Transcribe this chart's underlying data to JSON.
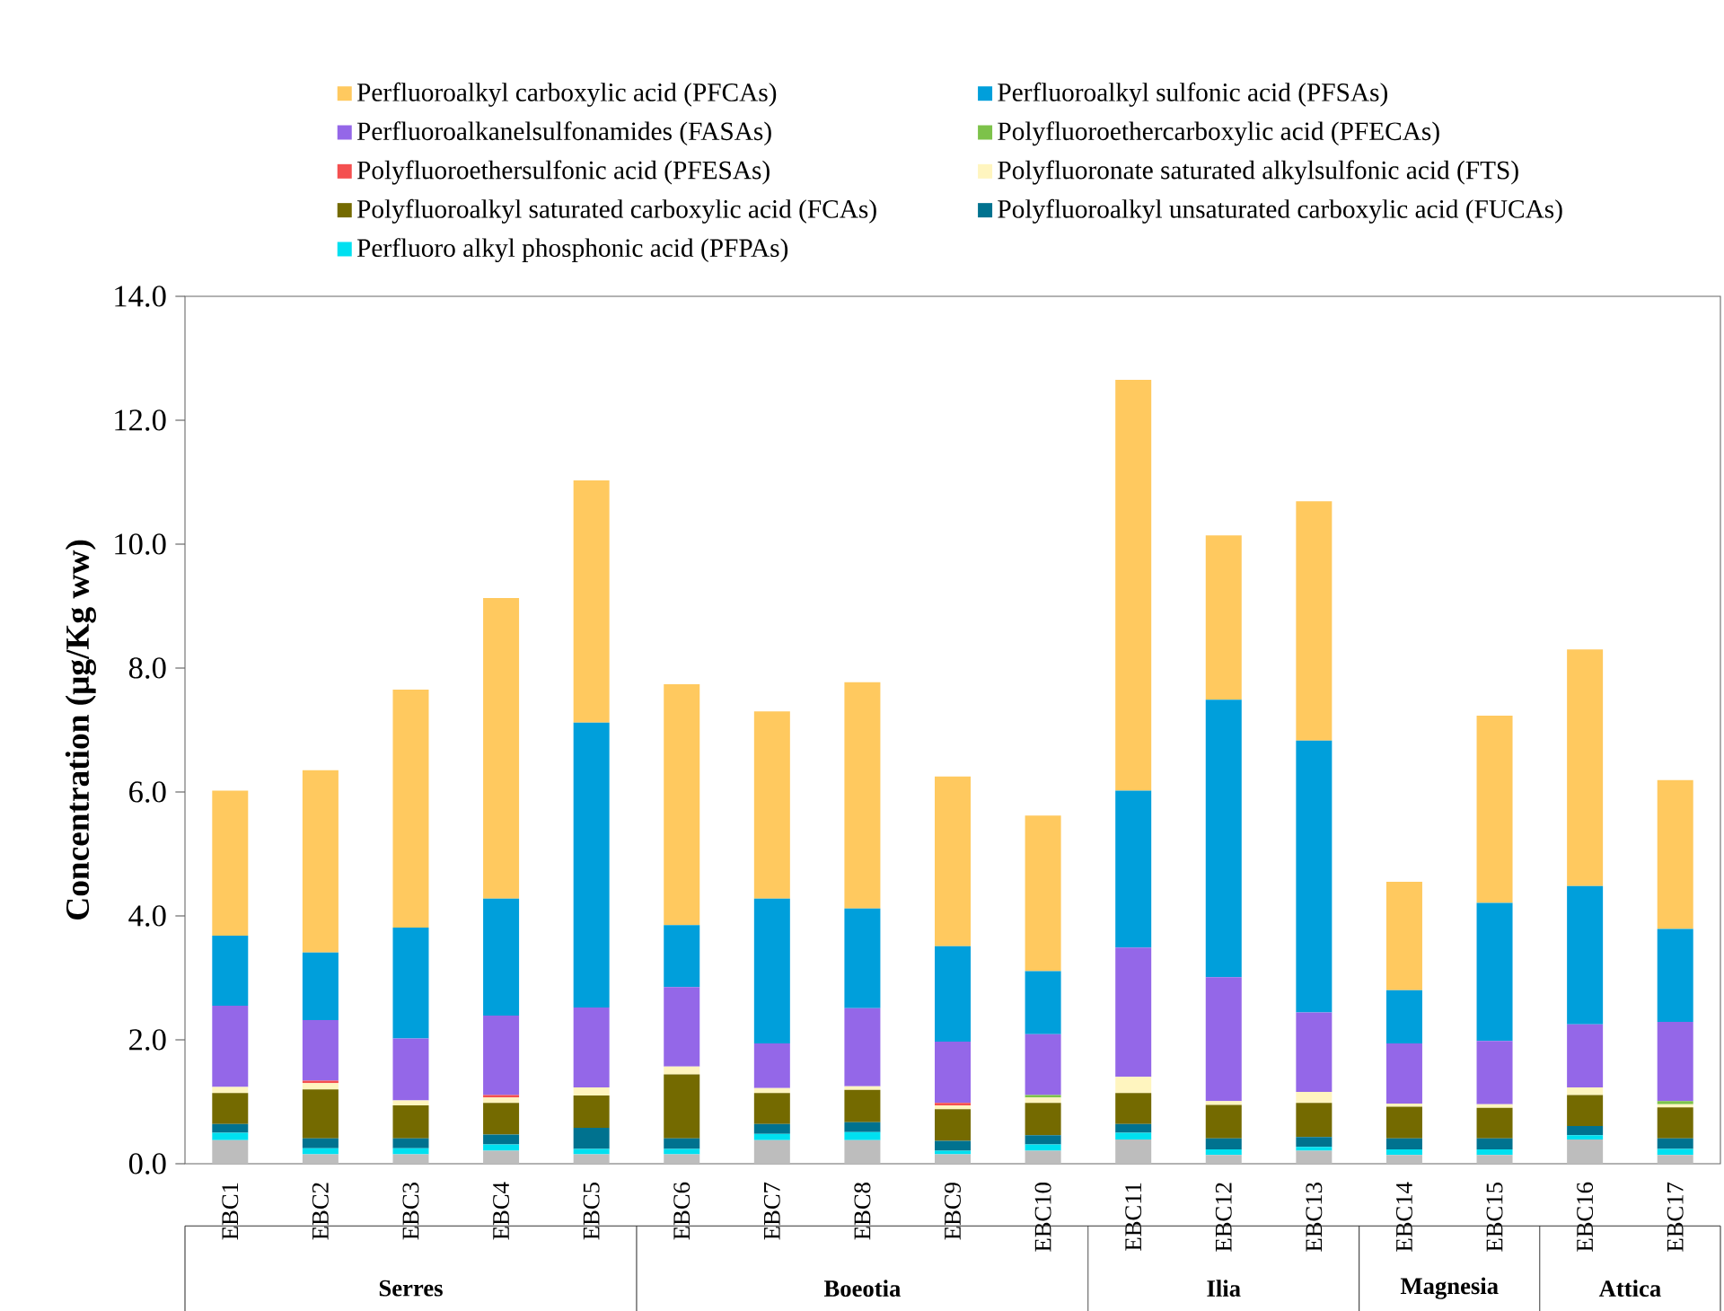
{
  "chart_data": {
    "type": "bar",
    "stacked": true,
    "ylabel": "Concentration (μg/Kg ww)",
    "categories": [
      "EBC1",
      "EBC2",
      "EBC3",
      "EBC4",
      "EBC5",
      "EBC6",
      "EBC7",
      "EBC8",
      "EBC9",
      "EBC10",
      "EBC11",
      "EBC12",
      "EBC13",
      "EBC14",
      "EBC15",
      "EBC16",
      "EBC17"
    ],
    "ylim": [
      0,
      14
    ],
    "yticks": [
      {
        "value": 0,
        "label": "0.0"
      },
      {
        "value": 2,
        "label": "2.0"
      },
      {
        "value": 4,
        "label": "4.0"
      },
      {
        "value": 6,
        "label": "6.0"
      },
      {
        "value": 8,
        "label": "8.0"
      },
      {
        "value": 10,
        "label": "10.0"
      },
      {
        "value": 12,
        "label": "12.0"
      },
      {
        "value": 14,
        "label": "14.0"
      }
    ],
    "legend": "top",
    "grid": false,
    "series": [
      {
        "color": "#bdbdbd",
        "values": [
          0.38,
          0.15,
          0.15,
          0.21,
          0.15,
          0.15,
          0.38,
          0.38,
          0.15,
          0.21,
          0.39,
          0.14,
          0.21,
          0.14,
          0.14,
          0.39,
          0.14
        ]
      },
      {
        "name": "Perfluoro alkyl phosphonic acid (PFPAs)",
        "color": "#00e0f0",
        "values": [
          0.12,
          0.1,
          0.1,
          0.1,
          0.09,
          0.09,
          0.1,
          0.13,
          0.06,
          0.1,
          0.11,
          0.09,
          0.06,
          0.09,
          0.09,
          0.07,
          0.1
        ]
      },
      {
        "name": "Polyfluoroalkyl unsaturated carboxylic acid (FUCAs)",
        "color": "#00728f",
        "values": [
          0.14,
          0.16,
          0.16,
          0.16,
          0.34,
          0.17,
          0.16,
          0.16,
          0.16,
          0.15,
          0.14,
          0.18,
          0.16,
          0.18,
          0.18,
          0.15,
          0.17
        ]
      },
      {
        "name": "Polyfluoroalkyl saturated carboxylic acid (FCAs)",
        "color": "#746a00",
        "values": [
          0.5,
          0.79,
          0.53,
          0.51,
          0.52,
          1.03,
          0.5,
          0.52,
          0.51,
          0.52,
          0.5,
          0.54,
          0.55,
          0.51,
          0.49,
          0.5,
          0.5
        ]
      },
      {
        "name": "Polyfluoronate saturated alkylsulfonic acid (FTS)",
        "color": "#fff5bf",
        "values": [
          0.1,
          0.1,
          0.08,
          0.09,
          0.13,
          0.13,
          0.08,
          0.06,
          0.06,
          0.09,
          0.26,
          0.06,
          0.18,
          0.05,
          0.06,
          0.12,
          0.05
        ]
      },
      {
        "name": "Polyfluoroethersulfonic acid (PFESAs)",
        "color": "#f45050",
        "values": [
          0,
          0.04,
          0,
          0.04,
          0,
          0,
          0,
          0,
          0.04,
          0,
          0,
          0,
          0,
          0,
          0,
          0,
          0
        ]
      },
      {
        "name": "Polyfluoroethercarboxylic acid (PFECAs)",
        "color": "#7dc24a",
        "values": [
          0,
          0,
          0,
          0,
          0,
          0,
          0,
          0,
          0,
          0.04,
          0,
          0,
          0,
          0,
          0,
          0,
          0.05
        ]
      },
      {
        "name": "Perfluoroalkanelsulfonamides (FASAs)",
        "color": "#9467e8",
        "values": [
          1.31,
          0.98,
          1.0,
          1.28,
          1.29,
          1.28,
          0.72,
          1.26,
          0.99,
          0.98,
          2.09,
          2.0,
          1.28,
          0.97,
          1.02,
          1.02,
          1.28
        ]
      },
      {
        "name": "Perfluoroalkyl sulfonic acid  (PFSAs)",
        "color": "#009fdb",
        "values": [
          1.13,
          1.09,
          1.79,
          1.89,
          4.6,
          1.0,
          2.34,
          1.61,
          1.54,
          1.02,
          2.53,
          4.48,
          4.39,
          0.86,
          2.23,
          2.23,
          1.5
        ]
      },
      {
        "name": "Perfluoroalkyl carboxylic acid (PFCAs)",
        "color": "#ffc95f",
        "values": [
          2.34,
          2.94,
          3.84,
          4.85,
          3.91,
          3.89,
          3.02,
          3.65,
          2.74,
          2.51,
          6.63,
          2.65,
          3.86,
          1.75,
          3.02,
          3.82,
          2.4
        ]
      }
    ],
    "annotations": [
      "Serres",
      "Boeotia",
      "Ilia",
      "Magnesia",
      "Attica"
    ]
  }
}
